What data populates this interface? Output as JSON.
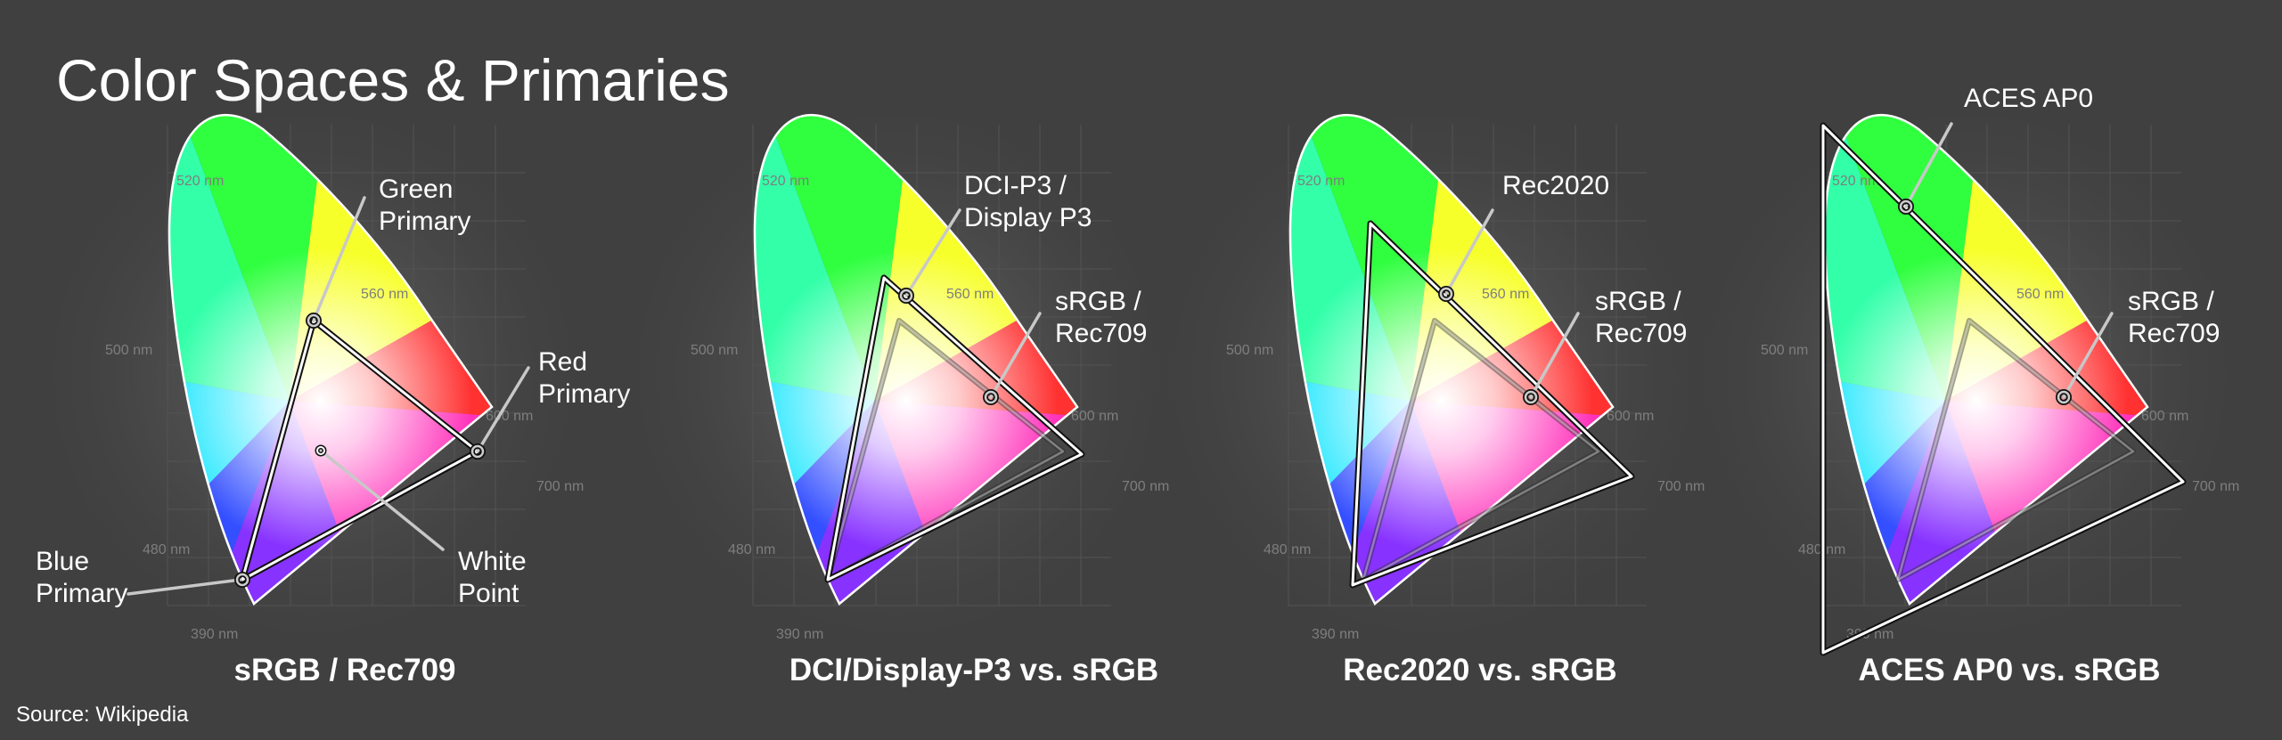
{
  "title": "Color Spaces & Primaries",
  "source": "Source: Wikipedia",
  "panels": [
    {
      "caption": "sRGB / Rec709",
      "callouts": [
        {
          "line1": "Green",
          "line2": "Primary"
        },
        {
          "line1": "Red",
          "line2": "Primary"
        },
        {
          "line1": "Blue",
          "line2": "Primary"
        },
        {
          "line1": "White",
          "line2": "Point"
        }
      ]
    },
    {
      "caption": "DCI/Display-P3 vs. sRGB",
      "callouts": [
        {
          "line1": "DCI-P3 /",
          "line2": "Display P3"
        },
        {
          "line1": "sRGB /",
          "line2": "Rec709"
        }
      ]
    },
    {
      "caption": "Rec2020 vs. sRGB",
      "callouts": [
        {
          "line1": "Rec2020",
          "line2": ""
        },
        {
          "line1": "sRGB /",
          "line2": "Rec709"
        }
      ]
    },
    {
      "caption": "ACES AP0 vs. sRGB",
      "callouts": [
        {
          "line1": "ACES AP0",
          "line2": ""
        },
        {
          "line1": "sRGB /",
          "line2": "Rec709"
        }
      ]
    }
  ],
  "wavelength_labels": [
    "520 nm",
    "560 nm",
    "500 nm",
    "600 nm",
    "700 nm",
    "480 nm",
    "390 nm"
  ],
  "colors": {
    "background": "#404040",
    "text": "#ffffff",
    "outline": "#ffffff",
    "grid": "#555555"
  }
}
